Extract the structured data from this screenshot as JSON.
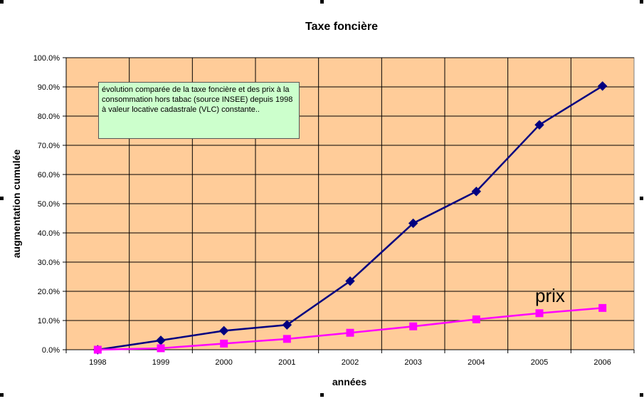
{
  "chart_data": {
    "type": "line",
    "title": "Taxe foncière",
    "xlabel": "années",
    "ylabel": "augmentation cumulée",
    "categories": [
      "1998",
      "1999",
      "2000",
      "2001",
      "2002",
      "2003",
      "2004",
      "2005",
      "2006"
    ],
    "y_ticks": [
      "0.0%",
      "10.0%",
      "20.0%",
      "30.0%",
      "40.0%",
      "50.0%",
      "60.0%",
      "70.0%",
      "80.0%",
      "90.0%",
      "100.0%"
    ],
    "ylim": [
      0,
      1
    ],
    "grid": true,
    "legend": "none",
    "series": [
      {
        "values": [
          0.0,
          0.032,
          0.065,
          0.085,
          0.235,
          0.433,
          0.542,
          0.77,
          0.903
        ],
        "color": "#000080",
        "marker": "diamond"
      },
      {
        "name": "prix",
        "values": [
          0.0,
          0.005,
          0.021,
          0.037,
          0.058,
          0.08,
          0.104,
          0.125,
          0.143
        ],
        "color": "#ff00ff",
        "marker": "square"
      }
    ],
    "annotations": [
      "évolution comparée de la taxe foncière et des  prix à la consommation hors tabac (source INSEE) depuis 1998  à valeur locative cadastrale (VLC) constante.."
    ],
    "colors": {
      "plot_background": "#ffcc99",
      "note_background": "#ccffcc",
      "grid": "#000000"
    }
  }
}
